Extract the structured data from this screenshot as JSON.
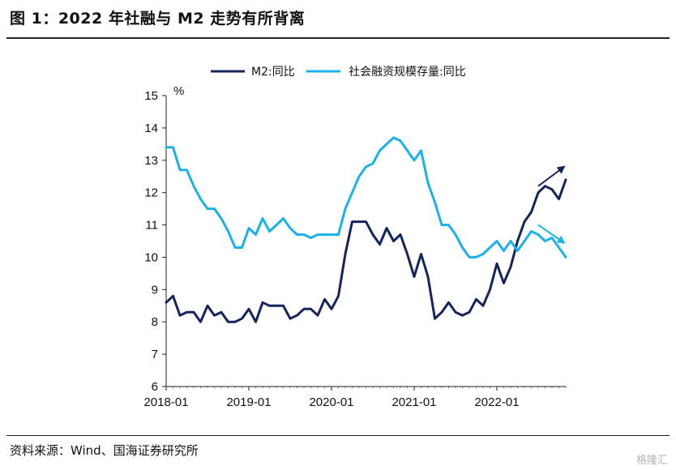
{
  "title": "图 1：2022 年社融与 M2 走势有所背离",
  "source": "资料来源：Wind、国海证券研究所",
  "watermark": "格隆汇",
  "chart_data": {
    "type": "line",
    "ylabel": "%",
    "ylim": [
      6,
      15
    ],
    "yticks": [
      6,
      7,
      8,
      9,
      10,
      11,
      12,
      13,
      14,
      15
    ],
    "xticks": [
      "2018-01",
      "2019-01",
      "2020-01",
      "2021-01",
      "2022-01"
    ],
    "xtick_index": [
      0,
      12,
      24,
      36,
      48
    ],
    "grid": false,
    "legend_position": "top",
    "x": [
      "2018-01",
      "2018-02",
      "2018-03",
      "2018-04",
      "2018-05",
      "2018-06",
      "2018-07",
      "2018-08",
      "2018-09",
      "2018-10",
      "2018-11",
      "2018-12",
      "2019-01",
      "2019-02",
      "2019-03",
      "2019-04",
      "2019-05",
      "2019-06",
      "2019-07",
      "2019-08",
      "2019-09",
      "2019-10",
      "2019-11",
      "2019-12",
      "2020-01",
      "2020-02",
      "2020-03",
      "2020-04",
      "2020-05",
      "2020-06",
      "2020-07",
      "2020-08",
      "2020-09",
      "2020-10",
      "2020-11",
      "2020-12",
      "2021-01",
      "2021-02",
      "2021-03",
      "2021-04",
      "2021-05",
      "2021-06",
      "2021-07",
      "2021-08",
      "2021-09",
      "2021-10",
      "2021-11",
      "2021-12",
      "2022-01",
      "2022-02",
      "2022-03",
      "2022-04",
      "2022-05",
      "2022-06",
      "2022-07",
      "2022-08",
      "2022-09",
      "2022-10",
      "2022-11"
    ],
    "series": [
      {
        "name": "M2:同比",
        "color": "#14245c",
        "values": [
          8.6,
          8.8,
          8.2,
          8.3,
          8.3,
          8.0,
          8.5,
          8.2,
          8.3,
          8.0,
          8.0,
          8.1,
          8.4,
          8.0,
          8.6,
          8.5,
          8.5,
          8.5,
          8.1,
          8.2,
          8.4,
          8.4,
          8.2,
          8.7,
          8.4,
          8.8,
          10.1,
          11.1,
          11.1,
          11.1,
          10.7,
          10.4,
          10.9,
          10.5,
          10.7,
          10.1,
          9.4,
          10.1,
          9.4,
          8.1,
          8.3,
          8.6,
          8.3,
          8.2,
          8.3,
          8.7,
          8.5,
          9.0,
          9.8,
          9.2,
          9.7,
          10.5,
          11.1,
          11.4,
          12.0,
          12.2,
          12.1,
          11.8,
          12.4
        ]
      },
      {
        "name": "社会融资规模存量:同比",
        "color": "#1ab2e8",
        "values": [
          13.4,
          13.4,
          12.7,
          12.7,
          12.2,
          11.8,
          11.5,
          11.5,
          11.2,
          10.8,
          10.3,
          10.3,
          10.9,
          10.7,
          11.2,
          10.8,
          11.0,
          11.2,
          10.9,
          10.7,
          10.7,
          10.6,
          10.7,
          10.7,
          10.7,
          10.7,
          11.5,
          12.0,
          12.5,
          12.8,
          12.9,
          13.3,
          13.5,
          13.7,
          13.6,
          13.3,
          13.0,
          13.3,
          12.3,
          11.7,
          11.0,
          11.0,
          10.7,
          10.3,
          10.0,
          10.0,
          10.1,
          10.3,
          10.5,
          10.2,
          10.5,
          10.2,
          10.5,
          10.8,
          10.7,
          10.5,
          10.6,
          10.3,
          10.0
        ]
      }
    ],
    "annotations": [
      {
        "type": "arrow",
        "direction": "up",
        "series": "M2:同比"
      },
      {
        "type": "arrow",
        "direction": "down",
        "series": "社会融资规模存量:同比"
      }
    ]
  }
}
